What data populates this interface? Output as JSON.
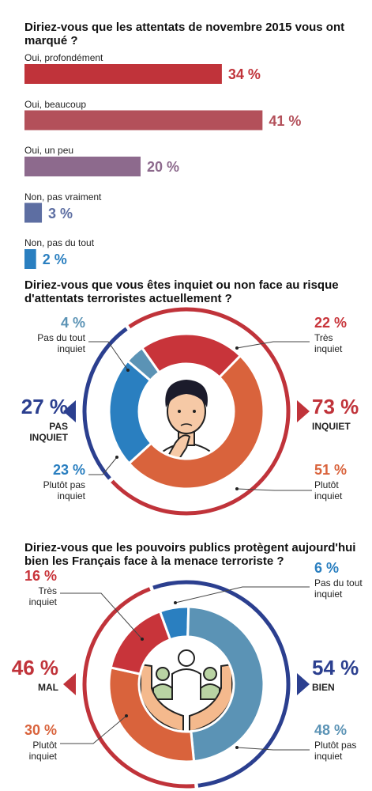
{
  "chart_data": [
    {
      "type": "bar",
      "title": "Diriez-vous que les attentats de novembre 2015 vous ont marqué ?",
      "categories": [
        "Oui, profondément",
        "Oui, beaucoup",
        "Oui, un peu",
        "Non, pas vraiment",
        "Non, pas du tout"
      ],
      "values": [
        34,
        41,
        20,
        3,
        2
      ],
      "value_labels": [
        "34 %",
        "41 %",
        "20 %",
        "3 %",
        "2 %"
      ],
      "colors": [
        "#c0333a",
        "#b3505a",
        "#8d6a8d",
        "#5d6ea2",
        "#2a7fc0"
      ]
    },
    {
      "type": "donut",
      "title": "Diriez-vous que vous êtes inquiet ou non face au risque d'attentats terroristes actuellement ?",
      "categories": [
        "Très inquiet",
        "Plutôt inquiet",
        "Plutôt pas inquiet",
        "Pas du tout inquiet"
      ],
      "values": [
        22,
        51,
        23,
        4
      ],
      "value_labels": [
        "22 %",
        "51 %",
        "23 %",
        "4 %"
      ],
      "colors": [
        "#c8343a",
        "#d9633c",
        "#2a7fc0",
        "#5b93b5"
      ],
      "totals": {
        "categories": [
          "INQUIET",
          "PAS INQUIET"
        ],
        "values": [
          73,
          27
        ],
        "value_labels": [
          "73 %",
          "27 %"
        ],
        "colors": [
          "#c0333a",
          "#2b3f8f"
        ]
      }
    },
    {
      "type": "donut",
      "title": "Diriez-vous que les pouvoirs publics protègent aujourd'hui bien les Français face à la menace terroriste ?",
      "categories": [
        "Pas du tout inquiet",
        "Plutôt pas inquiet",
        "Plutôt inquiet",
        "Très inquiet"
      ],
      "values": [
        6,
        48,
        30,
        16
      ],
      "value_labels": [
        "6 %",
        "48 %",
        "30 %",
        "16 %"
      ],
      "colors": [
        "#2a7fc0",
        "#5b93b5",
        "#d9633c",
        "#c8343a"
      ],
      "totals": {
        "categories": [
          "BIEN",
          "MAL"
        ],
        "values": [
          54,
          46
        ],
        "value_labels": [
          "54 %",
          "46 %"
        ],
        "colors": [
          "#2b3f8f",
          "#c0333a"
        ]
      }
    }
  ]
}
